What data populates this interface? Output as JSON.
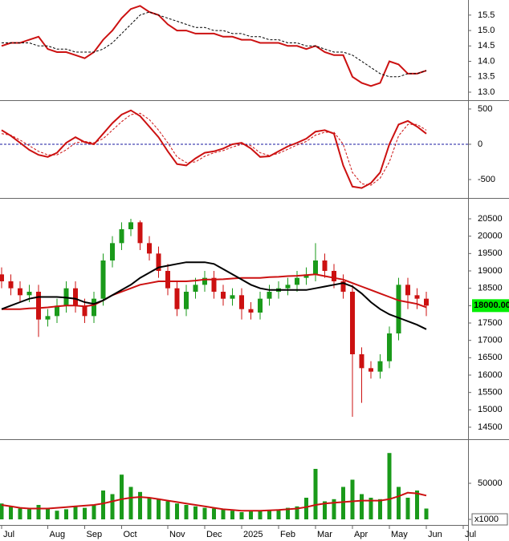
{
  "chart_data": [
    {
      "type": "line",
      "ylim": [
        12.74,
        15.99
      ],
      "yticks": [
        {
          "value": 13,
          "label": "13.0"
        },
        13.5,
        {
          "value": 14,
          "label": "14.0"
        },
        14.5,
        {
          "value": 15,
          "label": "15.0"
        },
        15.5
      ],
      "series": [
        {
          "color": "#cc1111",
          "values": [
            14.5,
            14.6,
            14.6,
            14.7,
            14.8,
            14.4,
            14.3,
            14.3,
            14.2,
            14.1,
            14.3,
            14.7,
            15.0,
            15.4,
            15.7,
            15.8,
            15.6,
            15.5,
            15.2,
            15.0,
            15.0,
            14.9,
            14.9,
            14.9,
            14.8,
            14.8,
            14.7,
            14.7,
            14.6,
            14.6,
            14.6,
            14.5,
            14.5,
            14.4,
            14.5,
            14.3,
            14.2,
            14.2,
            13.5,
            13.3,
            13.2,
            13.3,
            14.0,
            13.9,
            13.6,
            13.6,
            13.7,
            null,
            null,
            null,
            null
          ]
        },
        {
          "color": "#000000",
          "dash": true,
          "values": [
            14.6,
            14.6,
            14.6,
            14.6,
            14.5,
            14.5,
            14.4,
            14.4,
            14.3,
            14.3,
            14.3,
            14.4,
            14.6,
            14.9,
            15.2,
            15.5,
            15.6,
            15.5,
            15.4,
            15.3,
            15.2,
            15.1,
            15.1,
            15.0,
            15.0,
            14.9,
            14.9,
            14.8,
            14.8,
            14.7,
            14.7,
            14.6,
            14.6,
            14.5,
            14.5,
            14.4,
            14.3,
            14.3,
            14.2,
            14.0,
            13.8,
            13.6,
            13.5,
            13.5,
            13.6,
            13.6,
            13.7,
            null,
            null,
            null,
            null
          ]
        }
      ]
    },
    {
      "type": "line",
      "ylim": [
        -761,
        602
      ],
      "yticks": [
        500,
        0,
        -500
      ],
      "reference_line": {
        "value": 0,
        "color": "#1a1aa0"
      },
      "series": [
        {
          "color": "#cc1111",
          "values": [
            200,
            120,
            20,
            -80,
            -150,
            -180,
            -120,
            20,
            100,
            30,
            0,
            150,
            300,
            420,
            480,
            400,
            250,
            100,
            -100,
            -280,
            -300,
            -200,
            -120,
            -100,
            -60,
            0,
            20,
            -60,
            -180,
            -170,
            -100,
            -30,
            20,
            80,
            180,
            200,
            150,
            -300,
            -600,
            -620,
            -550,
            -400,
            0,
            280,
            330,
            250,
            150,
            null,
            null,
            null,
            null
          ]
        },
        {
          "color": "#cc1111",
          "dash": true,
          "values": [
            150,
            130,
            60,
            -20,
            -100,
            -150,
            -150,
            -80,
            20,
            40,
            20,
            80,
            200,
            320,
            420,
            440,
            350,
            200,
            20,
            -180,
            -260,
            -250,
            -170,
            -120,
            -90,
            -40,
            0,
            -20,
            -120,
            -160,
            -130,
            -70,
            -10,
            40,
            130,
            170,
            170,
            0,
            -400,
            -560,
            -580,
            -480,
            -250,
            120,
            280,
            280,
            200,
            null,
            null,
            null,
            null
          ]
        }
      ]
    },
    {
      "type": "candlestick",
      "ylim": [
        14154,
        21054
      ],
      "yticks": [
        14500,
        15000,
        15500,
        16000,
        16500,
        17000,
        17500,
        18000,
        18500,
        19000,
        19500,
        20000,
        20500
      ],
      "up_color": "#1a9a1a",
      "down_color": "#cc1111",
      "open": [
        18900,
        18700,
        18500,
        18300,
        18400,
        17600,
        17700,
        18000,
        18500,
        18000,
        17700,
        18200,
        19300,
        19800,
        20200,
        20400,
        19800,
        19500,
        19000,
        18500,
        17900,
        18400,
        18600,
        18800,
        18400,
        18200,
        18300,
        17900,
        17800,
        18200,
        18400,
        18500,
        18600,
        18800,
        18900,
        19300,
        19000,
        18700,
        18400,
        16600,
        16200,
        16100,
        16400,
        17200,
        18600,
        18300,
        18200,
        null,
        null,
        null,
        null
      ],
      "high": [
        19100,
        18900,
        18700,
        18600,
        18600,
        17900,
        18200,
        18700,
        18700,
        18200,
        18400,
        19500,
        20000,
        20400,
        20500,
        20450,
        20000,
        19700,
        19200,
        18700,
        18600,
        18800,
        19000,
        19000,
        18600,
        18500,
        18500,
        18100,
        18400,
        18600,
        18700,
        18800,
        19000,
        19100,
        19800,
        19500,
        19200,
        18900,
        18600,
        16800,
        16400,
        16600,
        17400,
        18800,
        18800,
        18500,
        18400,
        null,
        null,
        null,
        null
      ],
      "low": [
        18500,
        18300,
        18100,
        18100,
        17100,
        17400,
        17500,
        17800,
        17800,
        17500,
        17500,
        18000,
        19100,
        19600,
        20000,
        19600,
        19300,
        18800,
        18300,
        17700,
        17700,
        18200,
        18400,
        18200,
        18000,
        18000,
        17600,
        17600,
        17600,
        18000,
        18200,
        18300,
        18400,
        18600,
        18700,
        18800,
        18500,
        18200,
        14800,
        15200,
        15900,
        15900,
        16200,
        17000,
        17900,
        17900,
        17700,
        null,
        null,
        null,
        null
      ],
      "close": [
        18700,
        18500,
        18300,
        18400,
        17600,
        17700,
        18000,
        18500,
        18000,
        17700,
        18200,
        19300,
        19800,
        20200,
        20400,
        19800,
        19500,
        19000,
        18500,
        17900,
        18400,
        18600,
        18800,
        18400,
        18200,
        18300,
        17900,
        17800,
        18200,
        18400,
        18500,
        18600,
        18800,
        18900,
        19300,
        19000,
        18700,
        18400,
        16600,
        16200,
        16100,
        16400,
        17200,
        18600,
        18300,
        18200,
        18000,
        null,
        null,
        null,
        null
      ],
      "last_price": {
        "value": 18000,
        "label": "18000.00"
      },
      "series": [
        {
          "color": "#cc1111",
          "values": [
            17900,
            17900,
            17900,
            17920,
            17930,
            17950,
            17980,
            18000,
            18000,
            17980,
            18020,
            18150,
            18300,
            18400,
            18500,
            18600,
            18650,
            18700,
            18700,
            18700,
            18700,
            18720,
            18750,
            18750,
            18760,
            18780,
            18800,
            18800,
            18800,
            18820,
            18830,
            18850,
            18860,
            18880,
            18900,
            18850,
            18800,
            18750,
            18650,
            18550,
            18450,
            18350,
            18250,
            18150,
            18100,
            18050,
            17950,
            null,
            null,
            null,
            null
          ]
        },
        {
          "color": "#000000",
          "values": [
            17900,
            18000,
            18100,
            18200,
            18250,
            18250,
            18250,
            18230,
            18200,
            18100,
            18050,
            18150,
            18300,
            18450,
            18600,
            18800,
            18950,
            19100,
            19150,
            19200,
            19250,
            19250,
            19250,
            19200,
            19050,
            18900,
            18750,
            18600,
            18500,
            18450,
            18450,
            18450,
            18450,
            18450,
            18500,
            18550,
            18600,
            18650,
            18550,
            18350,
            18100,
            17900,
            17750,
            17650,
            17550,
            17450,
            17320,
            null,
            null,
            null,
            null
          ]
        }
      ]
    },
    {
      "type": "bar",
      "ylim": [
        -7780,
        108900
      ],
      "yticks": [
        0,
        50000
      ],
      "unit_label": "x1000",
      "color": "#1a9a1a",
      "categories": [
        "Jul",
        null,
        null,
        null,
        null,
        "Aug",
        null,
        null,
        null,
        "Sep",
        null,
        null,
        null,
        "Oct",
        null,
        null,
        null,
        null,
        "Nov",
        null,
        null,
        null,
        "Dec",
        null,
        null,
        null,
        "2025",
        null,
        null,
        null,
        "Feb",
        null,
        null,
        null,
        "Mar",
        null,
        null,
        null,
        "Apr",
        null,
        null,
        null,
        "May",
        null,
        null,
        null,
        "Jun",
        null,
        null,
        null,
        "Jul"
      ],
      "values": [
        22000,
        18000,
        15000,
        14000,
        20000,
        16000,
        12000,
        14000,
        18000,
        16000,
        20000,
        40000,
        35000,
        62000,
        45000,
        38000,
        30000,
        28000,
        25000,
        22000,
        20000,
        18000,
        16000,
        15000,
        14000,
        12000,
        10000,
        11000,
        12000,
        13000,
        14000,
        16000,
        18000,
        30000,
        70000,
        25000,
        28000,
        45000,
        55000,
        35000,
        30000,
        28000,
        92000,
        45000,
        30000,
        40000,
        15000,
        null,
        null,
        null,
        null
      ],
      "series": [
        {
          "color": "#cc1111",
          "values": [
            20000,
            18000,
            16000,
            15000,
            15000,
            15000,
            16000,
            17000,
            18000,
            19000,
            20000,
            22000,
            25000,
            28000,
            30000,
            31000,
            30000,
            28000,
            26000,
            24000,
            22000,
            20000,
            18000,
            16000,
            14000,
            13000,
            12000,
            12000,
            12000,
            12500,
            13000,
            14000,
            15000,
            17000,
            20000,
            22000,
            23000,
            24000,
            25000,
            26000,
            26000,
            26000,
            28000,
            32000,
            37000,
            36000,
            33000,
            null,
            null,
            null,
            null
          ]
        }
      ]
    }
  ]
}
